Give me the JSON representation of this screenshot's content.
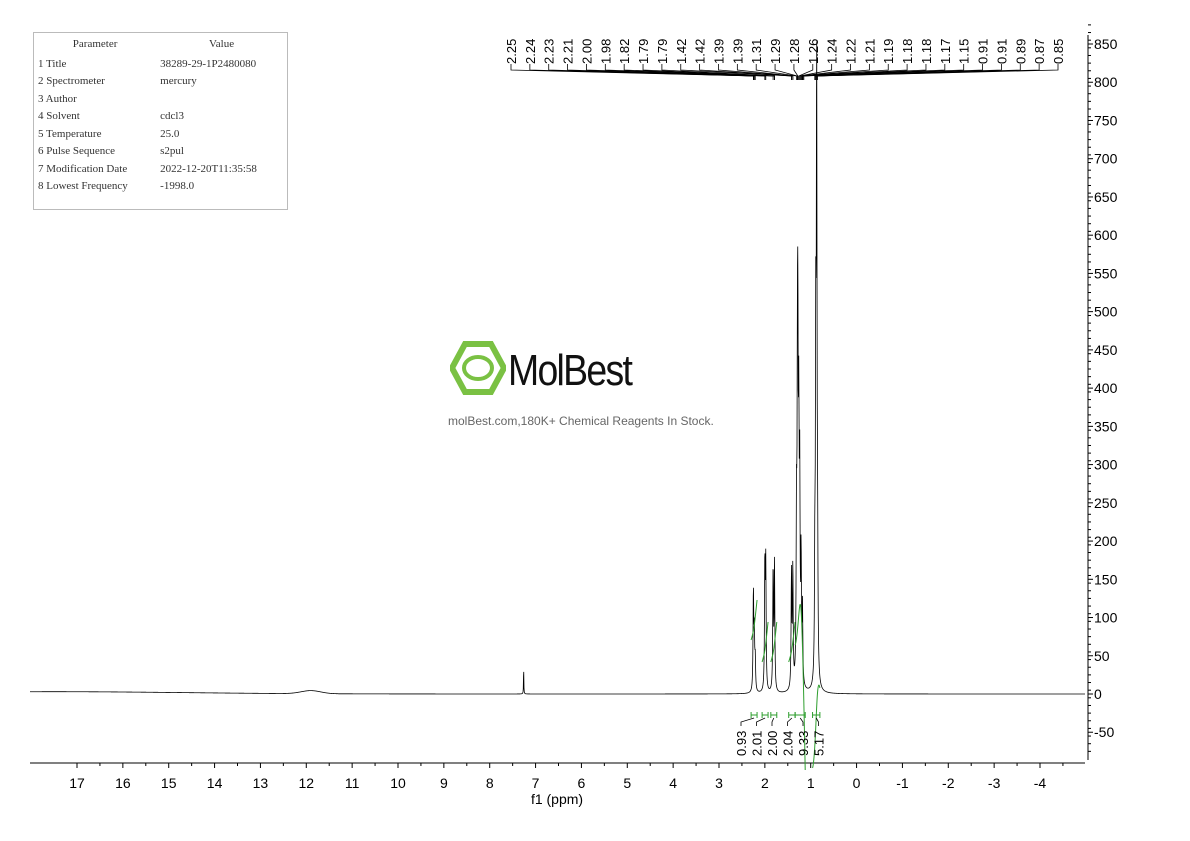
{
  "parameters": {
    "headers": [
      "Parameter",
      "Value"
    ],
    "rows": [
      [
        "1 Title",
        "38289-29-1P2480080"
      ],
      [
        "2 Spectrometer",
        "mercury"
      ],
      [
        "3 Author",
        ""
      ],
      [
        "4 Solvent",
        "cdcl3"
      ],
      [
        "5 Temperature",
        "25.0"
      ],
      [
        "6 Pulse Sequence",
        "s2pul"
      ],
      [
        "7 Modification Date",
        "2022-12-20T11:35:58"
      ],
      [
        "8 Lowest Frequency",
        "-1998.0"
      ]
    ]
  },
  "watermark": {
    "name": "MolBest",
    "tagline": "molBest.com,180K+ Chemical Reagents In Stock.",
    "color": "#7ac143"
  },
  "chart_data": {
    "type": "line",
    "xlabel": "f1 (ppm)",
    "ylabel": "",
    "xlim": [
      18,
      -5
    ],
    "ylim": [
      -80,
      870
    ],
    "x_ticks": [
      17,
      16,
      15,
      14,
      13,
      12,
      11,
      10,
      9,
      8,
      7,
      6,
      5,
      4,
      3,
      2,
      1,
      0,
      -1,
      -2,
      -3,
      -4
    ],
    "y_ticks": [
      850,
      800,
      750,
      700,
      650,
      600,
      550,
      500,
      450,
      400,
      350,
      300,
      250,
      200,
      150,
      100,
      50,
      0,
      -50
    ],
    "peak_labels": [
      "2.25",
      "2.24",
      "2.23",
      "2.21",
      "2.00",
      "1.98",
      "1.82",
      "1.79",
      "1.79",
      "1.42",
      "1.42",
      "1.39",
      "1.39",
      "1.31",
      "1.29",
      "1.28",
      "1.26",
      "1.24",
      "1.22",
      "1.21",
      "1.19",
      "1.18",
      "1.18",
      "1.17",
      "1.15",
      "0.91",
      "0.91",
      "0.89",
      "0.87",
      "0.85"
    ],
    "peaks": [
      {
        "ppm": 7.26,
        "height": 38
      },
      {
        "ppm": 2.25,
        "height": 130
      },
      {
        "ppm": 2.23,
        "height": 70
      },
      {
        "ppm": 2.21,
        "height": 40
      },
      {
        "ppm": 2.0,
        "height": 165
      },
      {
        "ppm": 1.98,
        "height": 160
      },
      {
        "ppm": 1.82,
        "height": 160
      },
      {
        "ppm": 1.79,
        "height": 165
      },
      {
        "ppm": 1.42,
        "height": 150
      },
      {
        "ppm": 1.39,
        "height": 155
      },
      {
        "ppm": 1.31,
        "height": 200
      },
      {
        "ppm": 1.29,
        "height": 310
      },
      {
        "ppm": 1.28,
        "height": 350
      },
      {
        "ppm": 1.26,
        "height": 300
      },
      {
        "ppm": 1.24,
        "height": 255
      },
      {
        "ppm": 1.21,
        "height": 160
      },
      {
        "ppm": 1.18,
        "height": 100
      },
      {
        "ppm": 0.91,
        "height": 140
      },
      {
        "ppm": 0.89,
        "height": 410
      },
      {
        "ppm": 0.87,
        "height": 785
      },
      {
        "ppm": 0.85,
        "height": 140
      }
    ],
    "integrals": [
      {
        "from": 2.3,
        "to": 2.17,
        "value": "0.93"
      },
      {
        "from": 2.06,
        "to": 1.93,
        "value": "2.01"
      },
      {
        "from": 1.87,
        "to": 1.74,
        "value": "2.00"
      },
      {
        "from": 1.48,
        "to": 1.34,
        "value": "2.04"
      },
      {
        "from": 1.34,
        "to": 1.12,
        "value": "9.33"
      },
      {
        "from": 0.96,
        "to": 0.8,
        "value": "5.17"
      }
    ],
    "line_color": "#000000",
    "integral_color": "#2e9e2e"
  }
}
